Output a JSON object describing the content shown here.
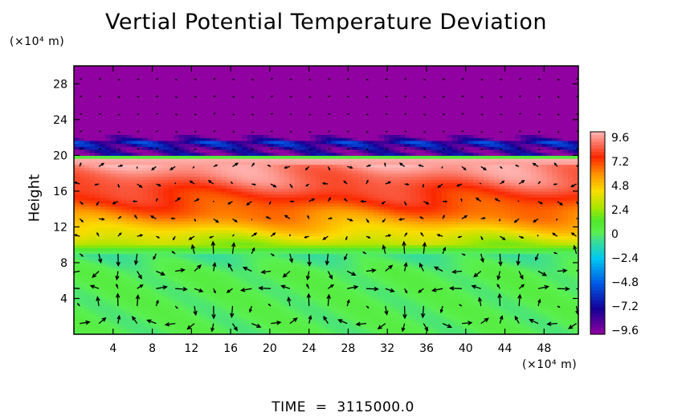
{
  "chart_data": {
    "type": "heatmap",
    "title": "Vertial Potential Temperature Deviation",
    "ylabel": "Height",
    "y_unit": "(×10⁴ m)",
    "x_unit": "(×10⁴ m)",
    "xlim": [
      0,
      51.5
    ],
    "ylim": [
      0,
      30
    ],
    "x_ticks": [
      "4",
      "8",
      "12",
      "16",
      "20",
      "24",
      "28",
      "32",
      "36",
      "40",
      "44",
      "48"
    ],
    "y_ticks": [
      "4",
      "8",
      "12",
      "16",
      "20",
      "24",
      "28"
    ],
    "colorbar": {
      "ticks": [
        "9.6",
        "7.2",
        "4.8",
        "2.4",
        "0",
        "−2.4",
        "−4.8",
        "−7.2",
        "−9.6"
      ],
      "range": [
        -9.6,
        9.6
      ]
    },
    "height_profile": [
      {
        "z": 0,
        "value": 0.0
      },
      {
        "z": 7,
        "value": 0.1
      },
      {
        "z": 9,
        "value": -0.6
      },
      {
        "z": 10,
        "value": 2.4
      },
      {
        "z": 11.5,
        "value": 4.0
      },
      {
        "z": 13,
        "value": 5.6
      },
      {
        "z": 15,
        "value": 7.0
      },
      {
        "z": 17,
        "value": 8.2
      },
      {
        "z": 19.5,
        "value": 9.4
      },
      {
        "z": 20.2,
        "value": -9.0
      },
      {
        "z": 21.5,
        "value": -6.5
      },
      {
        "z": 22,
        "value": -9.6
      },
      {
        "z": 30,
        "value": -9.6
      }
    ],
    "overlay": "velocity vectors",
    "time_label": "TIME",
    "time_value": "3115000.0"
  }
}
